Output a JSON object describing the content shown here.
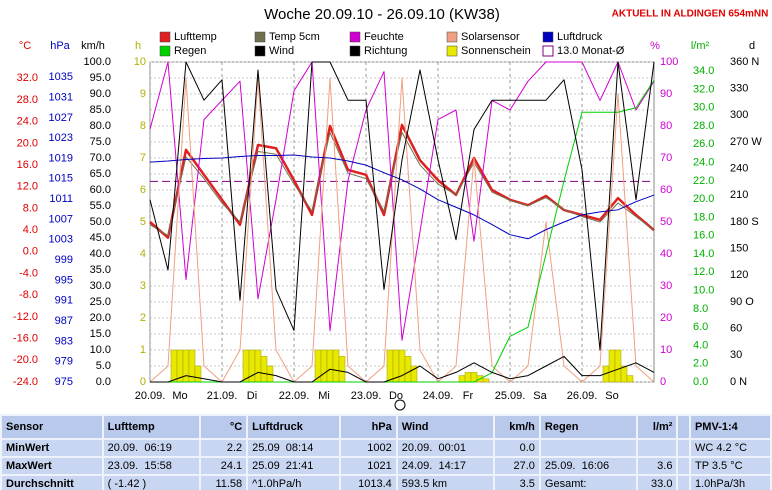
{
  "chart_data": {
    "type": "line",
    "title": "Woche 20.09.10 - 26.09.10 (KW38)",
    "station": "AKTUELL IN ALDINGEN 654mNN",
    "x": [
      0,
      6,
      12,
      18,
      24,
      30,
      36,
      42,
      48,
      54,
      60,
      66,
      72,
      78,
      84,
      90,
      96,
      102,
      108,
      114,
      120,
      126,
      132,
      138,
      144,
      150,
      156,
      162,
      168
    ],
    "xlim": [
      0,
      168
    ],
    "xticks": [
      {
        "value": 0,
        "label": "20.09."
      },
      {
        "value": 24,
        "label": "21.09."
      },
      {
        "value": 48,
        "label": "22.09."
      },
      {
        "value": 72,
        "label": "23.09."
      },
      {
        "value": 96,
        "label": "24.09."
      },
      {
        "value": 120,
        "label": "25.09."
      },
      {
        "value": 144,
        "label": "26.09."
      }
    ],
    "weekdays": [
      "Mo",
      "Di",
      "Mi",
      "Do",
      "Fr",
      "Sa",
      "So"
    ],
    "grid": true,
    "axes": [
      {
        "title": "°C",
        "color": "#e00000",
        "ylim": [
          -24,
          35
        ],
        "yticks": [
          {
            "value": 32,
            "label": "32.0"
          },
          {
            "value": 28,
            "label": "28.0"
          },
          {
            "value": 24,
            "label": "24.0"
          },
          {
            "value": 20,
            "label": "20.0"
          },
          {
            "value": 16,
            "label": "16.0"
          },
          {
            "value": 12,
            "label": "12.0"
          },
          {
            "value": 8,
            "label": "8.0"
          },
          {
            "value": 4,
            "label": "4.0"
          },
          {
            "value": 0,
            "label": "0.0"
          },
          {
            "value": -4,
            "label": "-4.0"
          },
          {
            "value": -8,
            "label": "-8.0"
          },
          {
            "value": -12,
            "label": "-12.0"
          },
          {
            "value": -16,
            "label": "-16.0"
          },
          {
            "value": -20,
            "label": "-20.0"
          },
          {
            "value": -24,
            "label": "-24.0"
          }
        ]
      },
      {
        "title": "hPa",
        "color": "#0000c0",
        "ylim": [
          975,
          1038
        ],
        "yticks": [
          1035,
          1031,
          1027,
          1023,
          1019,
          1015,
          1011,
          1007,
          1003,
          999,
          995,
          991,
          987,
          983,
          979,
          975
        ]
      },
      {
        "title": "km/h",
        "color": "#000000",
        "ylim": [
          0,
          100
        ],
        "yticks": [
          {
            "value": 100,
            "label": "100.0"
          },
          {
            "value": 95,
            "label": "95.0"
          },
          {
            "value": 90,
            "label": "90.0"
          },
          {
            "value": 85,
            "label": "85.0"
          },
          {
            "value": 80,
            "label": "80.0"
          },
          {
            "value": 75,
            "label": "75.0"
          },
          {
            "value": 70,
            "label": "70.0"
          },
          {
            "value": 65,
            "label": "65.0"
          },
          {
            "value": 60,
            "label": "60.0"
          },
          {
            "value": 55,
            "label": "55.0"
          },
          {
            "value": 50,
            "label": "50.0"
          },
          {
            "value": 45,
            "label": "45.0"
          },
          {
            "value": 40,
            "label": "40.0"
          },
          {
            "value": 35,
            "label": "35.0"
          },
          {
            "value": 30,
            "label": "30.0"
          },
          {
            "value": 25,
            "label": "25.0"
          },
          {
            "value": 20,
            "label": "20.0"
          },
          {
            "value": 15,
            "label": "15.0"
          },
          {
            "value": 10,
            "label": "10.0"
          },
          {
            "value": 5,
            "label": "5.0"
          },
          {
            "value": 0,
            "label": "0.0"
          }
        ]
      },
      {
        "title": "h",
        "color": "#b0b000",
        "ylim": [
          0,
          10
        ],
        "yticks": [
          10,
          9,
          8,
          7,
          6,
          5,
          4,
          3,
          2,
          1,
          0
        ]
      },
      {
        "title": "%",
        "color": "#d000d0",
        "ylim": [
          0,
          100
        ],
        "yticks": [
          100,
          90,
          80,
          70,
          60,
          50,
          40,
          30,
          20,
          10,
          0
        ]
      },
      {
        "title": "l/m²",
        "color": "#00b000",
        "ylim": [
          0,
          35
        ],
        "yticks": [
          {
            "value": 34,
            "label": "34.0"
          },
          {
            "value": 32,
            "label": "32.0"
          },
          {
            "value": 30,
            "label": "30.0"
          },
          {
            "value": 28,
            "label": "28.0"
          },
          {
            "value": 26,
            "label": "26.0"
          },
          {
            "value": 24,
            "label": "24.0"
          },
          {
            "value": 22,
            "label": "22.0"
          },
          {
            "value": 20,
            "label": "20.0"
          },
          {
            "value": 18,
            "label": "18.0"
          },
          {
            "value": 16,
            "label": "16.0"
          },
          {
            "value": 14,
            "label": "14.0"
          },
          {
            "value": 12,
            "label": "12.0"
          },
          {
            "value": 10,
            "label": "10.0"
          },
          {
            "value": 8,
            "label": "8.0"
          },
          {
            "value": 6,
            "label": "6.0"
          },
          {
            "value": 4,
            "label": "4.0"
          },
          {
            "value": 2,
            "label": "2.0"
          },
          {
            "value": 0,
            "label": "0.0"
          }
        ]
      },
      {
        "title": "d",
        "color": "#000000",
        "ylim": [
          0,
          360
        ],
        "yticks": [
          {
            "value": 360,
            "label": "360 N"
          },
          330,
          300,
          {
            "value": 270,
            "label": "270 W"
          },
          240,
          210,
          {
            "value": 180,
            "label": "180 S"
          },
          150,
          120,
          {
            "value": 90,
            "label": "90 O"
          },
          60,
          30,
          {
            "value": 0,
            "label": "0 N"
          }
        ]
      }
    ],
    "series": [
      {
        "name": "Lufttemp",
        "color": "#e02020",
        "axis": 0,
        "kind": "line",
        "width": 2.5,
        "values": [
          5.5,
          2.6,
          18.8,
          14.2,
          9.6,
          5.0,
          19.7,
          19.1,
          13.2,
          6.8,
          23.2,
          15.1,
          14.2,
          6.8,
          23.4,
          16.9,
          13.2,
          10.5,
          17.3,
          11.4,
          9.6,
          8.6,
          10.3,
          7.7,
          6.8,
          5.9,
          9.9,
          6.8,
          4.0
        ]
      },
      {
        "name": "Temp 5cm",
        "color": "#707050",
        "axis": 0,
        "kind": "line",
        "width": 1,
        "values": [
          5.0,
          3.0,
          17.5,
          13.5,
          9.0,
          5.5,
          18.5,
          18.0,
          12.5,
          7.5,
          22.0,
          14.5,
          13.5,
          7.5,
          22.0,
          16.0,
          12.5,
          10.5,
          16.5,
          11.0,
          9.5,
          8.5,
          10.0,
          7.8,
          6.5,
          5.5,
          9.0,
          6.5,
          4.0
        ]
      },
      {
        "name": "Feuchte",
        "color": "#d000d0",
        "axis": 4,
        "kind": "line",
        "width": 1,
        "values": [
          79,
          100,
          32,
          82,
          88,
          94,
          26,
          57,
          91,
          100,
          16,
          63,
          85,
          97,
          13,
          47,
          82,
          85,
          44,
          88,
          85,
          94,
          100,
          100,
          100,
          88,
          100,
          85,
          94
        ]
      },
      {
        "name": "Solarsensor",
        "color": "#f0a080",
        "axis": 4,
        "kind": "line",
        "width": 1,
        "values": [
          0,
          5,
          95,
          5,
          0,
          10,
          95,
          10,
          0,
          5,
          95,
          5,
          0,
          5,
          95,
          10,
          0,
          5,
          70,
          5,
          0,
          5,
          50,
          5,
          0,
          5,
          90,
          5,
          0
        ]
      },
      {
        "name": "Luftdruck",
        "color": "#0000c0",
        "axis": 1,
        "kind": "line",
        "width": 1,
        "values": [
          1018.3,
          1018.5,
          1018.8,
          1019.0,
          1019.1,
          1019.4,
          1019.6,
          1019.6,
          1019.7,
          1019.3,
          1019.1,
          1018.5,
          1017.7,
          1016.2,
          1014.8,
          1013.0,
          1010.9,
          1009.4,
          1007.9,
          1006.0,
          1004.0,
          1003.2,
          1005.0,
          1006.5,
          1007.9,
          1008.5,
          1008.9,
          1010.5,
          1011.8
        ]
      },
      {
        "name": "Regen",
        "color": "#00d000",
        "axis": 5,
        "kind": "line",
        "width": 1,
        "values": [
          0,
          0,
          0,
          0,
          0,
          0,
          0,
          0,
          0,
          0,
          0,
          0,
          0,
          0,
          0,
          0,
          0,
          0,
          0,
          1,
          5,
          6,
          14,
          22,
          29.5,
          29.5,
          29.5,
          30,
          33
        ]
      },
      {
        "name": "Wind",
        "color": "#000000",
        "axis": 2,
        "kind": "line",
        "width": 1,
        "values": [
          0,
          0,
          2,
          1,
          0,
          0,
          3,
          2,
          0,
          0,
          4,
          3,
          0,
          0,
          2,
          5,
          1,
          3,
          6,
          3,
          1,
          2,
          5,
          8,
          2,
          2,
          4,
          6,
          3
        ]
      },
      {
        "name": "Richtung",
        "color": "#000000",
        "axis": 6,
        "kind": "line",
        "width": 1,
        "values": [
          205,
          126,
          360,
          317,
          340,
          92,
          351,
          104,
          58,
          360,
          360,
          317,
          317,
          104,
          250,
          351,
          250,
          160,
          284,
          317,
          317,
          317,
          317,
          340,
          239,
          36,
          360,
          205,
          360
        ]
      },
      {
        "name": "Sonnenschein",
        "color": "#e8e800",
        "axis": 3,
        "kind": "bar",
        "x": [
          8,
          10,
          12,
          14,
          16,
          32,
          34,
          36,
          38,
          40,
          56,
          58,
          60,
          62,
          64,
          80,
          82,
          84,
          86,
          88,
          104,
          106,
          108,
          110,
          112,
          152,
          154,
          156,
          158,
          160
        ],
        "values": [
          1,
          1,
          1,
          1,
          0.5,
          1,
          1,
          1,
          0.8,
          0.5,
          1,
          1,
          1,
          1,
          0.8,
          1,
          1,
          1,
          0.8,
          0.5,
          0.2,
          0.3,
          0.3,
          0.2,
          0.1,
          0.5,
          1,
          1,
          0.5,
          0.2
        ]
      }
    ],
    "reference": {
      "name": "Monat-Ø",
      "value": 13.0,
      "value_label": "13.0",
      "color": "#800080",
      "axis": 0
    }
  },
  "table": {
    "header": {
      "sensor": "Sensor",
      "groups": [
        {
          "name": "Lufttemp",
          "unit": "°C"
        },
        {
          "name": "Luftdruck",
          "unit": "hPa"
        },
        {
          "name": "Wind",
          "unit": "km/h"
        },
        {
          "name": "Regen",
          "unit": "l/m²"
        }
      ],
      "pmv": "PMV-1:4"
    },
    "rows": [
      {
        "label": "MinWert",
        "cells": [
          [
            "20.09.  06:19",
            "2.2"
          ],
          [
            "25.09  08:14",
            "1002"
          ],
          [
            "20.09.  00:01",
            "0.0"
          ],
          null
        ],
        "pmv": "WC 4.2 °C"
      },
      {
        "label": "MaxWert",
        "cells": [
          [
            "23.09.  15:58",
            "24.1"
          ],
          [
            "25.09  21:41",
            "1021"
          ],
          [
            "24.09.  14:17",
            "27.0"
          ],
          [
            "25.09.  16:06",
            "3.6"
          ]
        ],
        "pmv": "TP 3.5 °C"
      },
      {
        "label": "Durchschnitt",
        "cells": [
          [
            "( -1.42 )",
            "11.58"
          ],
          [
            "^1.0hPa/h",
            "1013.4"
          ],
          [
            "593.5 km",
            "3.5"
          ],
          [
            "Gesamt:",
            "33.0"
          ]
        ],
        "pmv": "1.0hPa/3h"
      }
    ]
  }
}
